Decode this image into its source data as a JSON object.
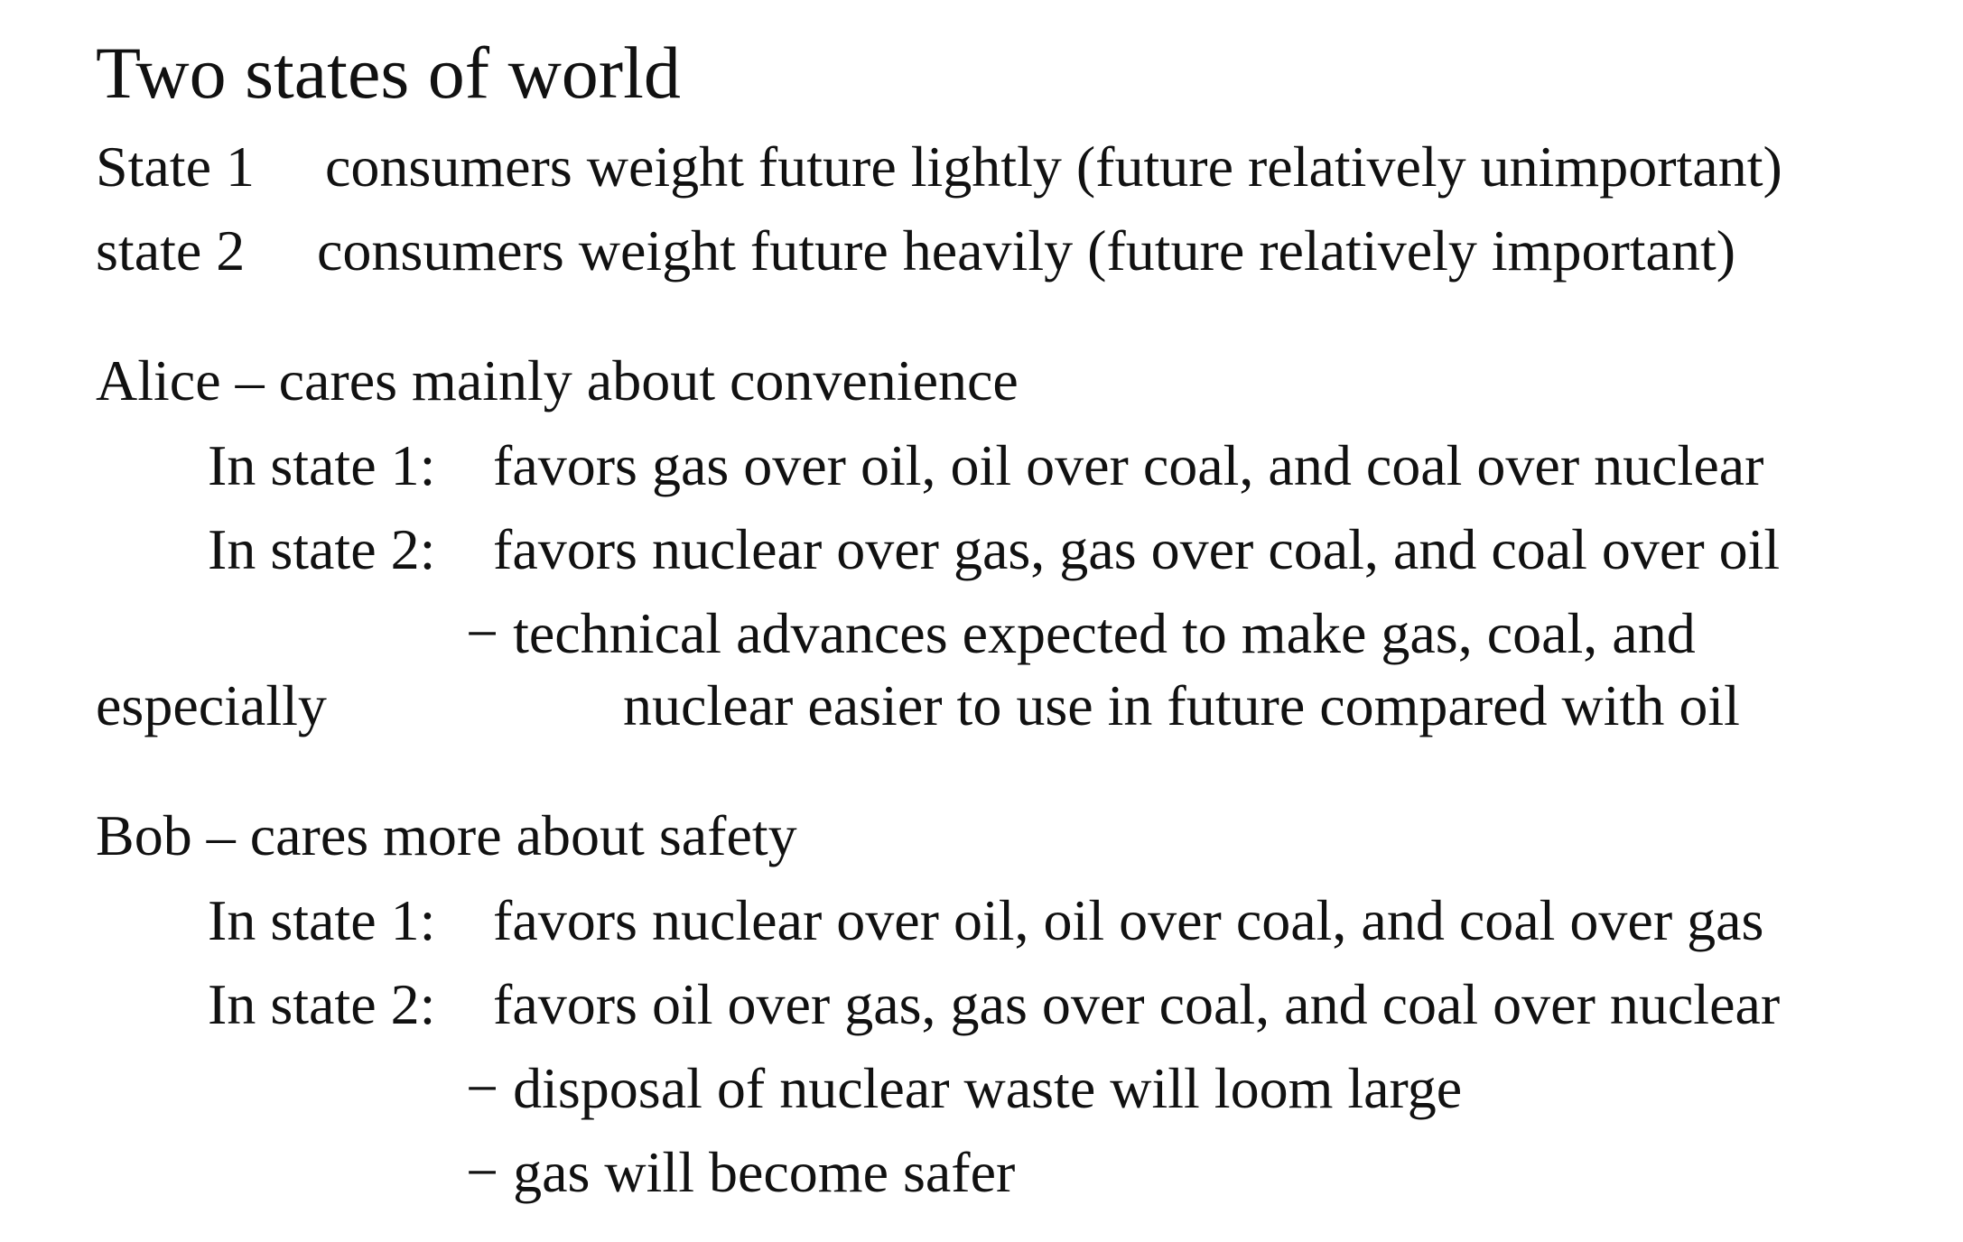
{
  "title": "Two states of world",
  "states": {
    "state1_label": "State 1",
    "state1_desc": "consumers weight future lightly (future relatively unimportant)",
    "state2_label": "state 2",
    "state2_desc": "consumers weight future heavily (future relatively important)"
  },
  "alice": {
    "heading": "Alice – cares mainly about convenience",
    "state1_label": "In state 1:",
    "state1_pref": "favors gas over oil, oil over coal, and coal over nuclear",
    "state2_label": "In state 2:",
    "state2_pref": "favors nuclear over gas, gas over coal, and coal over oil",
    "note_line1": "− technical advances expected to make gas, coal, and",
    "note_word": "especially",
    "note_line2": "nuclear easier to use in future compared with oil"
  },
  "bob": {
    "heading": "Bob – cares more about safety",
    "state1_label": "In state 1:",
    "state1_pref": "favors nuclear over oil, oil over coal, and coal over gas",
    "state2_label": "In state 2:",
    "state2_pref": "favors oil over gas, gas over coal, and coal over nuclear",
    "note1": "− disposal of nuclear waste will loom large",
    "note2": "− gas will become safer"
  }
}
